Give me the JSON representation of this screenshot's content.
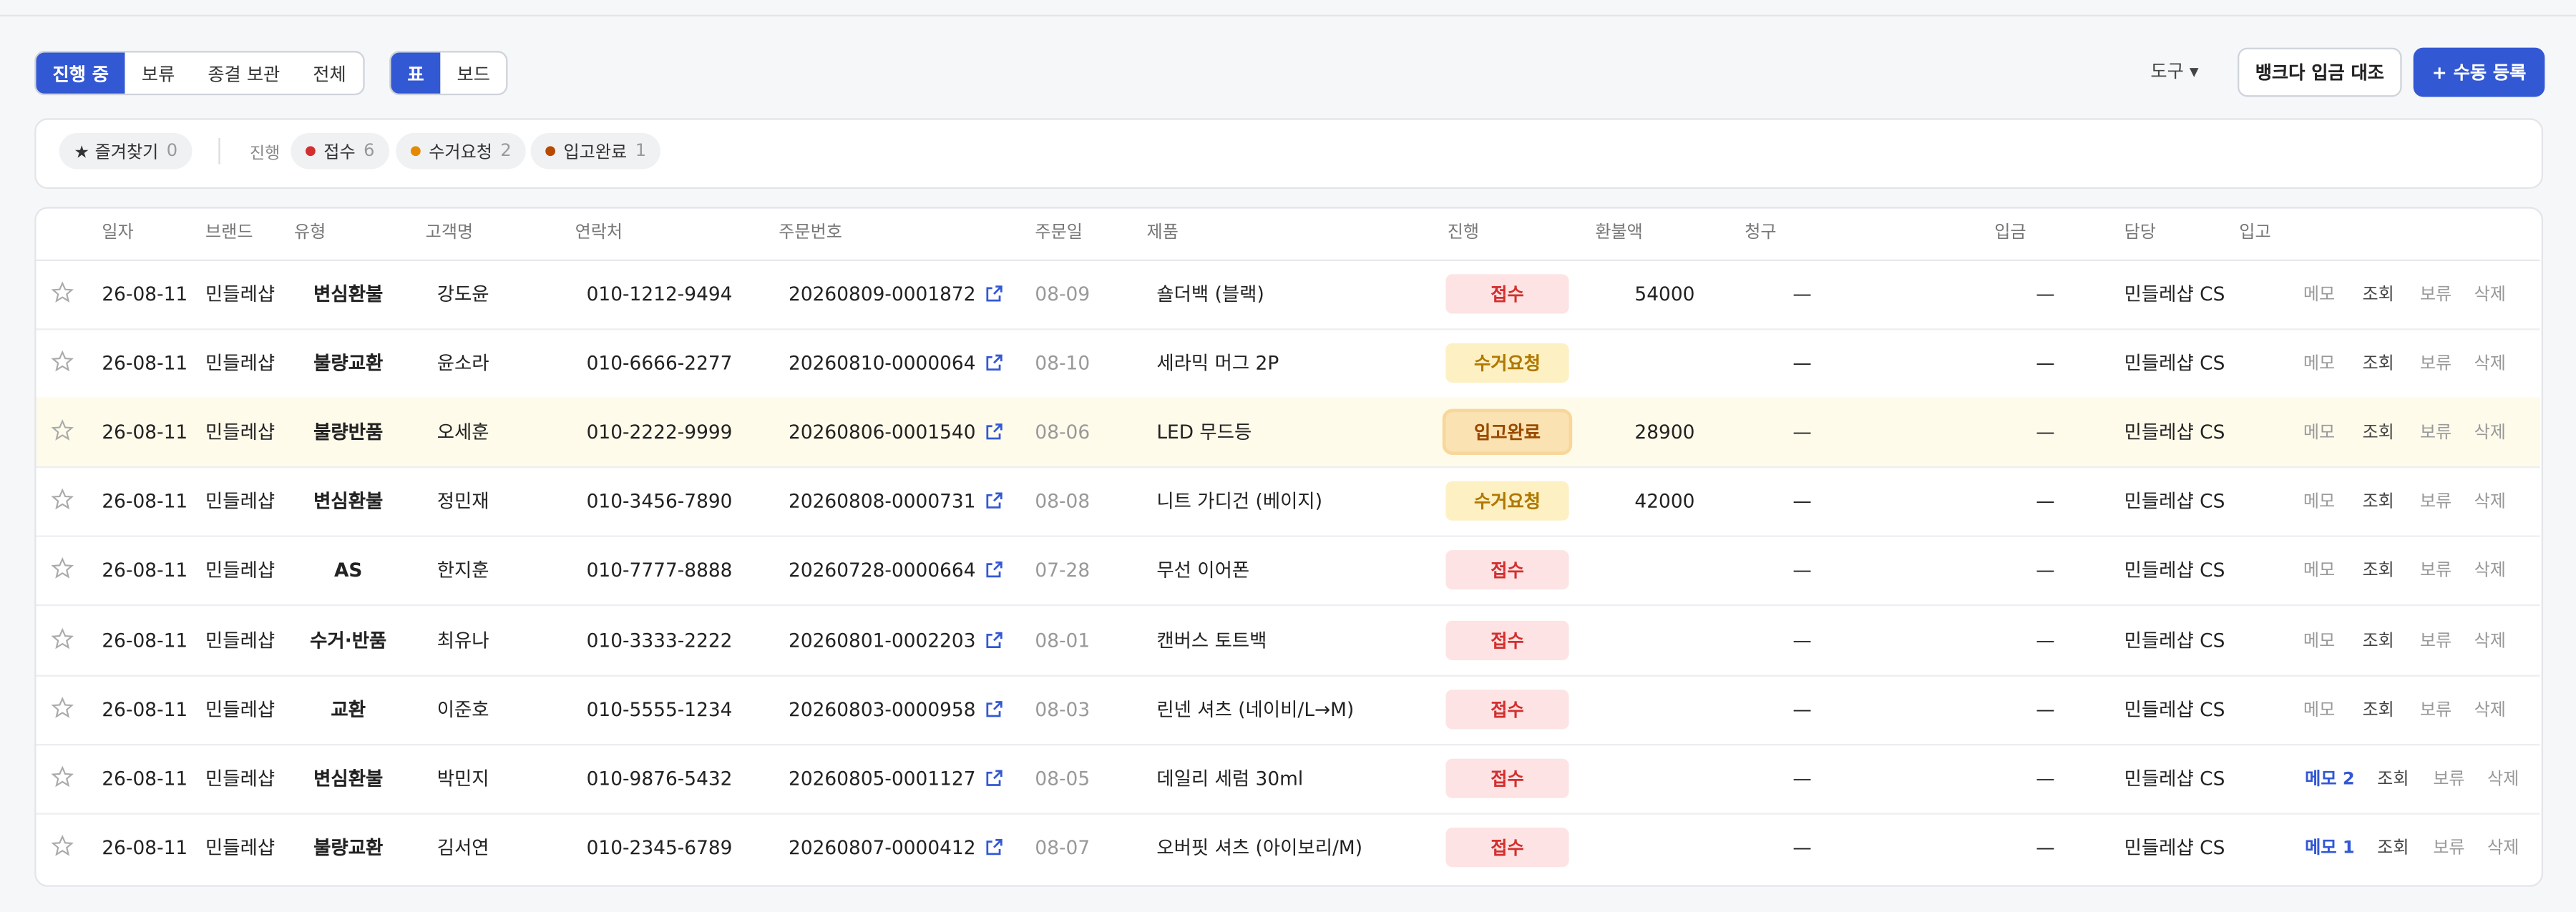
{
  "tabs": [
    {
      "label": "진행 중",
      "active": true
    },
    {
      "label": "보류",
      "active": false
    },
    {
      "label": "종결 보관",
      "active": false
    },
    {
      "label": "전체",
      "active": false
    }
  ],
  "views": [
    {
      "label": "표",
      "active": true
    },
    {
      "label": "보드",
      "active": false
    }
  ],
  "tools": "도구 ▾",
  "buttons": [
    "뱅크다 입금 대조",
    "+ 수동 등록"
  ],
  "filters": {
    "favorite": {
      "label": "★ 즐겨찾기",
      "count": "0"
    },
    "group_label": "진행",
    "chips": [
      {
        "label": "접수",
        "count": "6",
        "color": "#d32f2f"
      },
      {
        "label": "수거요청",
        "count": "2",
        "color": "#e58a00"
      },
      {
        "label": "입고완료",
        "count": "1",
        "color": "#b84a00"
      }
    ]
  },
  "table": {
    "headers": [
      "일자",
      "브랜드",
      "유형",
      "고객명",
      "연락처",
      "주문번호",
      "주문일",
      "제품",
      "진행",
      "환불액",
      "청구",
      "입금",
      "담당",
      "입고"
    ],
    "rows": [
      {
        "date": "26-08-11",
        "brand": "민들레샵",
        "type": "변심환불",
        "customer": "강도윤",
        "phone": "010-1212-9494",
        "order": "20260809-0001872",
        "order_date": "08-09",
        "product": "숄더백 (블랙)",
        "status": "접수",
        "refund": "54000",
        "claim": "—",
        "deposit": "—",
        "manager": "민들레샵 CS",
        "actions": [
          "메모",
          "조회",
          "보류",
          "삭제"
        ],
        "memo_count": false,
        "highlight": false
      },
      {
        "date": "26-08-11",
        "brand": "민들레샵",
        "type": "불량교환",
        "customer": "윤소라",
        "phone": "010-6666-2277",
        "order": "20260810-0000064",
        "order_date": "08-10",
        "product": "세라믹 머그 2P",
        "status": "수거요청",
        "refund": null,
        "claim": "—",
        "deposit": "—",
        "manager": "민들레샵 CS",
        "actions": [
          "메모",
          "조회",
          "보류",
          "삭제"
        ],
        "memo_count": false,
        "highlight": false
      },
      {
        "date": "26-08-11",
        "brand": "민들레샵",
        "type": "불량반품",
        "customer": "오세훈",
        "phone": "010-2222-9999",
        "order": "20260806-0001540",
        "order_date": "08-06",
        "product": "LED 무드등",
        "status": "입고완료",
        "refund": "28900",
        "claim": "—",
        "deposit": "—",
        "manager": "민들레샵 CS",
        "actions": [
          "메모",
          "조회",
          "보류",
          "삭제"
        ],
        "memo_count": false,
        "highlight": true
      },
      {
        "date": "26-08-11",
        "brand": "민들레샵",
        "type": "변심환불",
        "customer": "정민재",
        "phone": "010-3456-7890",
        "order": "20260808-0000731",
        "order_date": "08-08",
        "product": "니트 가디건 (베이지)",
        "status": "수거요청",
        "refund": "42000",
        "claim": "—",
        "deposit": "—",
        "manager": "민들레샵 CS",
        "actions": [
          "메모",
          "조회",
          "보류",
          "삭제"
        ],
        "memo_count": false,
        "highlight": false
      },
      {
        "date": "26-08-11",
        "brand": "민들레샵",
        "type": "AS",
        "customer": "한지훈",
        "phone": "010-7777-8888",
        "order": "20260728-0000664",
        "order_date": "07-28",
        "product": "무선 이어폰",
        "status": "접수",
        "refund": null,
        "claim": "—",
        "deposit": "—",
        "manager": "민들레샵 CS",
        "actions": [
          "메모",
          "조회",
          "보류",
          "삭제"
        ],
        "memo_count": false,
        "highlight": false
      },
      {
        "date": "26-08-11",
        "brand": "민들레샵",
        "type": "수거·반품",
        "customer": "최유나",
        "phone": "010-3333-2222",
        "order": "20260801-0002203",
        "order_date": "08-01",
        "product": "캔버스 토트백",
        "status": "접수",
        "refund": null,
        "claim": "—",
        "deposit": "—",
        "manager": "민들레샵 CS",
        "actions": [
          "메모",
          "조회",
          "보류",
          "삭제"
        ],
        "memo_count": false,
        "highlight": false
      },
      {
        "date": "26-08-11",
        "brand": "민들레샵",
        "type": "교환",
        "customer": "이준호",
        "phone": "010-5555-1234",
        "order": "20260803-0000958",
        "order_date": "08-03",
        "product": "린넨 셔츠 (네이비/L→M)",
        "status": "접수",
        "refund": null,
        "claim": "—",
        "deposit": "—",
        "manager": "민들레샵 CS",
        "actions": [
          "메모",
          "조회",
          "보류",
          "삭제"
        ],
        "memo_count": false,
        "highlight": false
      },
      {
        "date": "26-08-11",
        "brand": "민들레샵",
        "type": "변심환불",
        "customer": "박민지",
        "phone": "010-9876-5432",
        "order": "20260805-0001127",
        "order_date": "08-05",
        "product": "데일리 세럼 30ml",
        "status": "접수",
        "refund": null,
        "claim": "—",
        "deposit": "—",
        "manager": "민들레샵 CS",
        "actions": [
          "메모 2",
          "조회",
          "보류",
          "삭제"
        ],
        "memo_count": true,
        "highlight": false
      },
      {
        "date": "26-08-11",
        "brand": "민들레샵",
        "type": "불량교환",
        "customer": "김서연",
        "phone": "010-2345-6789",
        "order": "20260807-0000412",
        "order_date": "08-07",
        "product": "오버핏 셔츠 (아이보리/M)",
        "status": "접수",
        "refund": null,
        "claim": "—",
        "deposit": "—",
        "manager": "민들레샵 CS",
        "actions": [
          "메모 1",
          "조회",
          "보류",
          "삭제"
        ],
        "memo_count": true,
        "highlight": false
      }
    ]
  }
}
